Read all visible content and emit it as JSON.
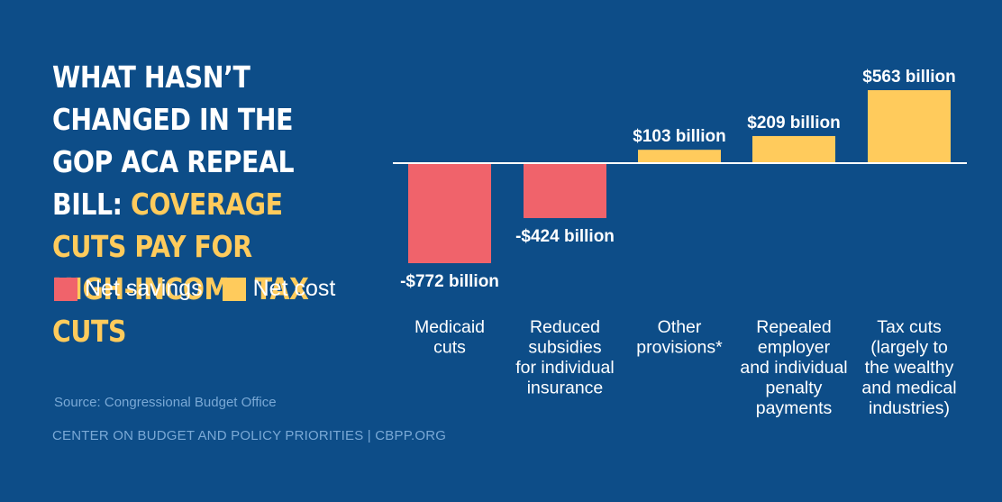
{
  "title": {
    "white": "What hasn’t changed in the GOP ACA repeal bill: ",
    "highlight": "Coverage cuts pay for high-income tax cuts"
  },
  "legend": [
    {
      "label": "Net savings",
      "color": "#f0636b"
    },
    {
      "label": "Net cost",
      "color": "#ffcb5c"
    }
  ],
  "source": "Source: Congressional Budget Office",
  "footer": "CENTER ON BUDGET AND POLICY PRIORITIES | CBPP.ORG",
  "colors": {
    "background": "#0d4d88",
    "savings": "#f0636b",
    "cost": "#ffcb5c",
    "axis": "#ffffff"
  },
  "chart_data": {
    "type": "bar",
    "unit": "billion dollars",
    "categories": [
      "Medicaid cuts",
      "Reduced subsidies for individual insurance",
      "Other provisions*",
      "Repealed employer and individual penalty payments",
      "Tax cuts (largely to the wealthy and medical industries)"
    ],
    "category_lines": [
      [
        "Medicaid",
        "cuts"
      ],
      [
        "Reduced",
        "subsidies",
        "for individual",
        "insurance"
      ],
      [
        "Other",
        "provisions*"
      ],
      [
        "Repealed",
        "employer",
        "and individual",
        "penalty",
        "payments"
      ],
      [
        "Tax cuts",
        "(largely to",
        "the wealthy",
        "and medical",
        "industries)"
      ]
    ],
    "values": [
      -772,
      -424,
      103,
      209,
      563
    ],
    "data_labels": [
      "-$772 billion",
      "-$424 billion",
      "$103 billion",
      "$209 billion",
      "$563 billion"
    ],
    "series_type": [
      "savings",
      "savings",
      "cost",
      "cost",
      "cost"
    ],
    "ylim": [
      -772,
      563
    ],
    "grid": false
  }
}
